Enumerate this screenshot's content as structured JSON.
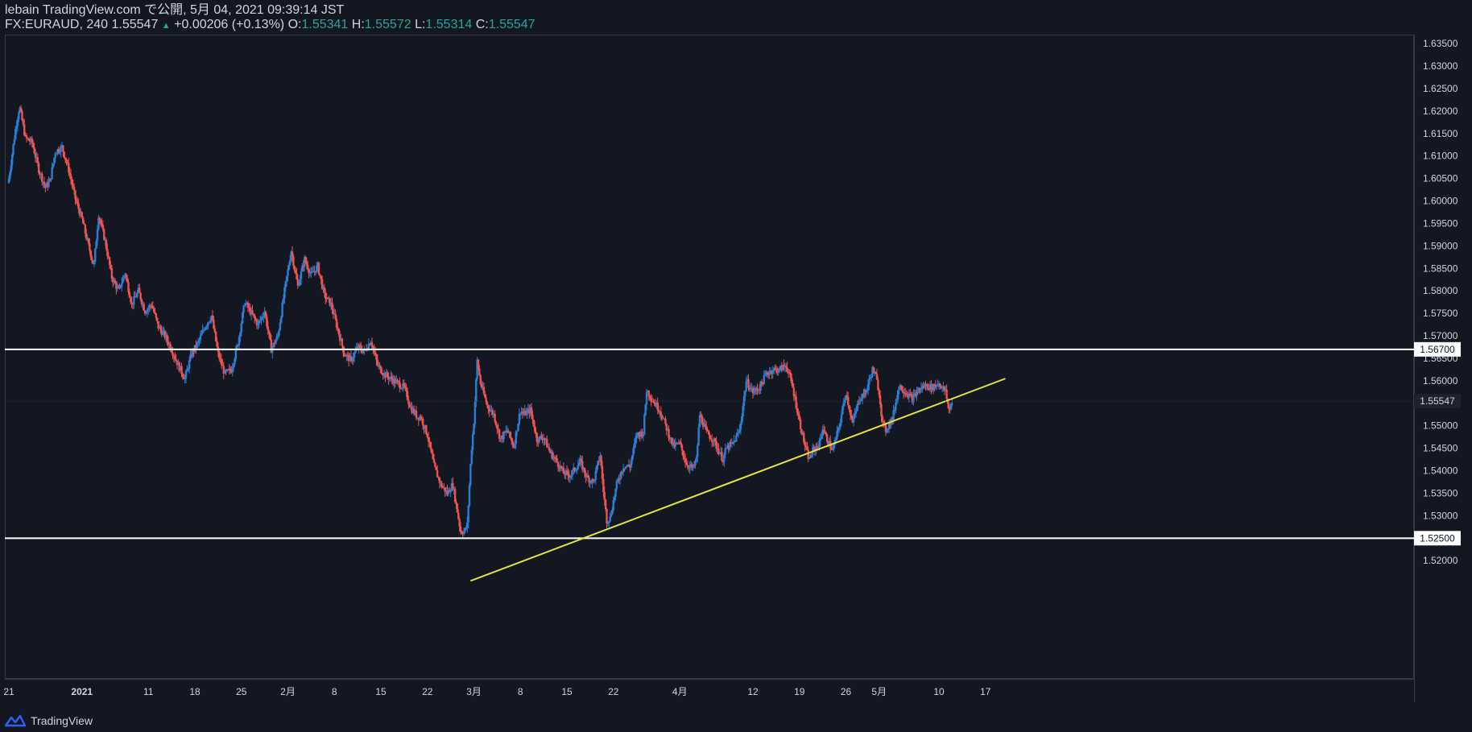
{
  "header": {
    "publisher_line": "lebain TradingView.com で公開, 5月 04, 2021 09:39:14 JST",
    "symbol": "FX:EURAUD, 240",
    "last": "1.55547",
    "change": "+0.00206 (+0.13%)",
    "o_label": "O:",
    "o_value": "1.55341",
    "h_label": "H:",
    "h_value": "1.55572",
    "l_label": "L:",
    "l_value": "1.55314",
    "c_label": "C:",
    "c_value": "1.55547"
  },
  "footer": {
    "brand": "TradingView"
  },
  "colors": {
    "background": "#131722",
    "up": "#2a7fd4",
    "down": "#ef5350",
    "trendline": "#e8e241",
    "hline": "#ffffff",
    "text": "#d1d4dc",
    "teal": "#26a69a"
  },
  "chart_data": {
    "type": "candlestick",
    "symbol": "FX:EURAUD",
    "interval": "240",
    "ylim": [
      1.5155,
      1.6375
    ],
    "y_ticks": [
      "1.52000",
      "1.52500",
      "1.53000",
      "1.53500",
      "1.54000",
      "1.54500",
      "1.55000",
      "1.55500",
      "1.56000",
      "1.56500",
      "1.57000",
      "1.57500",
      "1.58000",
      "1.58500",
      "1.59000",
      "1.59500",
      "1.60000",
      "1.60500",
      "1.61000",
      "1.61500",
      "1.62000",
      "1.62500",
      "1.63000",
      "1.63500"
    ],
    "x_ticks": [
      {
        "label": "21",
        "day": 0
      },
      {
        "label": "2021",
        "day": 11
      },
      {
        "label": "11",
        "day": 21
      },
      {
        "label": "18",
        "day": 28
      },
      {
        "label": "25",
        "day": 35
      },
      {
        "label": "2月",
        "day": 42
      },
      {
        "label": "8",
        "day": 49
      },
      {
        "label": "15",
        "day": 56
      },
      {
        "label": "22",
        "day": 63
      },
      {
        "label": "3月",
        "day": 70
      },
      {
        "label": "8",
        "day": 77
      },
      {
        "label": "15",
        "day": 84
      },
      {
        "label": "22",
        "day": 91
      },
      {
        "label": "4月",
        "day": 101
      },
      {
        "label": "12",
        "day": 112
      },
      {
        "label": "19",
        "day": 119
      },
      {
        "label": "26",
        "day": 126
      },
      {
        "label": "5月",
        "day": 131
      },
      {
        "label": "10",
        "day": 140
      },
      {
        "label": "17",
        "day": 147
      }
    ],
    "close_path": [
      [
        0,
        1.605
      ],
      [
        1,
        1.616
      ],
      [
        1.6,
        1.621
      ],
      [
        2.5,
        1.614
      ],
      [
        3.5,
        1.613
      ],
      [
        4.5,
        1.607
      ],
      [
        5.5,
        1.603
      ],
      [
        6.2,
        1.6045
      ],
      [
        7,
        1.611
      ],
      [
        8,
        1.612
      ],
      [
        9,
        1.607
      ],
      [
        10,
        1.6005
      ],
      [
        11,
        1.596
      ],
      [
        12,
        1.59
      ],
      [
        12.8,
        1.5855
      ],
      [
        13.5,
        1.597
      ],
      [
        14.5,
        1.591
      ],
      [
        15.5,
        1.583
      ],
      [
        16.5,
        1.58
      ],
      [
        17.5,
        1.584
      ],
      [
        18.5,
        1.577
      ],
      [
        19.5,
        1.58
      ],
      [
        20.5,
        1.5755
      ],
      [
        21.5,
        1.577
      ],
      [
        22.5,
        1.572
      ],
      [
        23.5,
        1.57
      ],
      [
        24.5,
        1.567
      ],
      [
        25.5,
        1.5635
      ],
      [
        26.5,
        1.5605
      ],
      [
        27.5,
        1.566
      ],
      [
        28.5,
        1.5685
      ],
      [
        29.5,
        1.572
      ],
      [
        30.5,
        1.5745
      ],
      [
        31.5,
        1.566
      ],
      [
        32.5,
        1.5615
      ],
      [
        33.5,
        1.5625
      ],
      [
        34.5,
        1.5685
      ],
      [
        35.5,
        1.5775
      ],
      [
        36.5,
        1.575
      ],
      [
        37.5,
        1.5725
      ],
      [
        38.5,
        1.5755
      ],
      [
        39.5,
        1.567
      ],
      [
        40.5,
        1.57
      ],
      [
        41.5,
        1.58
      ],
      [
        42.5,
        1.589
      ],
      [
        43.5,
        1.581
      ],
      [
        44.5,
        1.587
      ],
      [
        45.5,
        1.5835
      ],
      [
        46.5,
        1.5855
      ],
      [
        47.5,
        1.579
      ],
      [
        48.5,
        1.577
      ],
      [
        49.5,
        1.5715
      ],
      [
        50.5,
        1.566
      ],
      [
        51.5,
        1.5645
      ],
      [
        52.5,
        1.5675
      ],
      [
        53.5,
        1.5665
      ],
      [
        54.5,
        1.569
      ],
      [
        55.5,
        1.5635
      ],
      [
        56.5,
        1.5615
      ],
      [
        57.5,
        1.5605
      ],
      [
        58.5,
        1.5595
      ],
      [
        59.5,
        1.5585
      ],
      [
        60.5,
        1.554
      ],
      [
        61.5,
        1.552
      ],
      [
        62,
        1.552
      ],
      [
        63,
        1.548
      ],
      [
        64,
        1.541
      ],
      [
        65,
        1.537
      ],
      [
        66,
        1.535
      ],
      [
        66.8,
        1.537
      ],
      [
        67.5,
        1.531
      ],
      [
        68,
        1.5265
      ],
      [
        68.6,
        1.5265
      ],
      [
        69,
        1.528
      ],
      [
        69.6,
        1.544
      ],
      [
        70,
        1.551
      ],
      [
        70.5,
        1.5645
      ],
      [
        71,
        1.5595
      ],
      [
        72,
        1.5545
      ],
      [
        73,
        1.5525
      ],
      [
        74,
        1.547
      ],
      [
        75,
        1.549
      ],
      [
        76,
        1.5455
      ],
      [
        77,
        1.5535
      ],
      [
        77.5,
        1.5525
      ],
      [
        78.5,
        1.5535
      ],
      [
        79.5,
        1.547
      ],
      [
        80.5,
        1.5475
      ],
      [
        81.5,
        1.544
      ],
      [
        82.5,
        1.542
      ],
      [
        83.5,
        1.5395
      ],
      [
        84.5,
        1.539
      ],
      [
        85.5,
        1.541
      ],
      [
        86,
        1.542
      ],
      [
        87,
        1.5385
      ],
      [
        88,
        1.5375
      ],
      [
        89,
        1.5435
      ],
      [
        89.5,
        1.5355
      ],
      [
        90,
        1.529
      ],
      [
        90.5,
        1.5295
      ],
      [
        91.5,
        1.537
      ],
      [
        92.5,
        1.541
      ],
      [
        93.5,
        1.541
      ],
      [
        94.5,
        1.548
      ],
      [
        95.5,
        1.5485
      ],
      [
        96,
        1.558
      ],
      [
        97,
        1.5555
      ],
      [
        98,
        1.5535
      ],
      [
        99,
        1.5495
      ],
      [
        100,
        1.5455
      ],
      [
        101,
        1.546
      ],
      [
        102,
        1.5415
      ],
      [
        103,
        1.5405
      ],
      [
        103.5,
        1.5425
      ],
      [
        104,
        1.5525
      ],
      [
        105,
        1.5485
      ],
      [
        106,
        1.547
      ],
      [
        107,
        1.544
      ],
      [
        107.5,
        1.5425
      ],
      [
        108,
        1.545
      ],
      [
        109,
        1.546
      ],
      [
        110,
        1.549
      ],
      [
        111,
        1.56
      ],
      [
        112,
        1.5575
      ],
      [
        113,
        1.5585
      ],
      [
        114,
        1.5615
      ],
      [
        115,
        1.5625
      ],
      [
        116,
        1.5625
      ],
      [
        117,
        1.5635
      ],
      [
        118,
        1.5585
      ],
      [
        119,
        1.551
      ],
      [
        120,
        1.5445
      ],
      [
        120.5,
        1.5425
      ],
      [
        121,
        1.5445
      ],
      [
        122,
        1.546
      ],
      [
        122.5,
        1.5495
      ],
      [
        123,
        1.5475
      ],
      [
        124,
        1.5445
      ],
      [
        125,
        1.55
      ],
      [
        126,
        1.5575
      ],
      [
        127,
        1.5505
      ],
      [
        128,
        1.556
      ],
      [
        129,
        1.5575
      ],
      [
        130,
        1.5625
      ],
      [
        130.5,
        1.561
      ],
      [
        131,
        1.5575
      ],
      [
        131.5,
        1.5505
      ],
      [
        132,
        1.549
      ],
      [
        132.5,
        1.5505
      ],
      [
        133,
        1.5515
      ],
      [
        134,
        1.559
      ],
      [
        135,
        1.5575
      ],
      [
        136,
        1.556
      ],
      [
        137,
        1.558
      ],
      [
        138,
        1.559
      ],
      [
        139,
        1.5585
      ],
      [
        140,
        1.5595
      ],
      [
        141,
        1.5575
      ],
      [
        141.5,
        1.5535
      ],
      [
        142,
        1.55547
      ]
    ],
    "horizontal_lines": [
      1.567,
      1.525
    ],
    "horizontal_line_labels": [
      "1.56700",
      "1.52500"
    ],
    "last_price": 1.55547,
    "last_price_label": "1.55547",
    "trendline": {
      "from": [
        69.5,
        1.5155
      ],
      "to": [
        150,
        1.5605
      ]
    },
    "legend": "none",
    "grid": false
  }
}
